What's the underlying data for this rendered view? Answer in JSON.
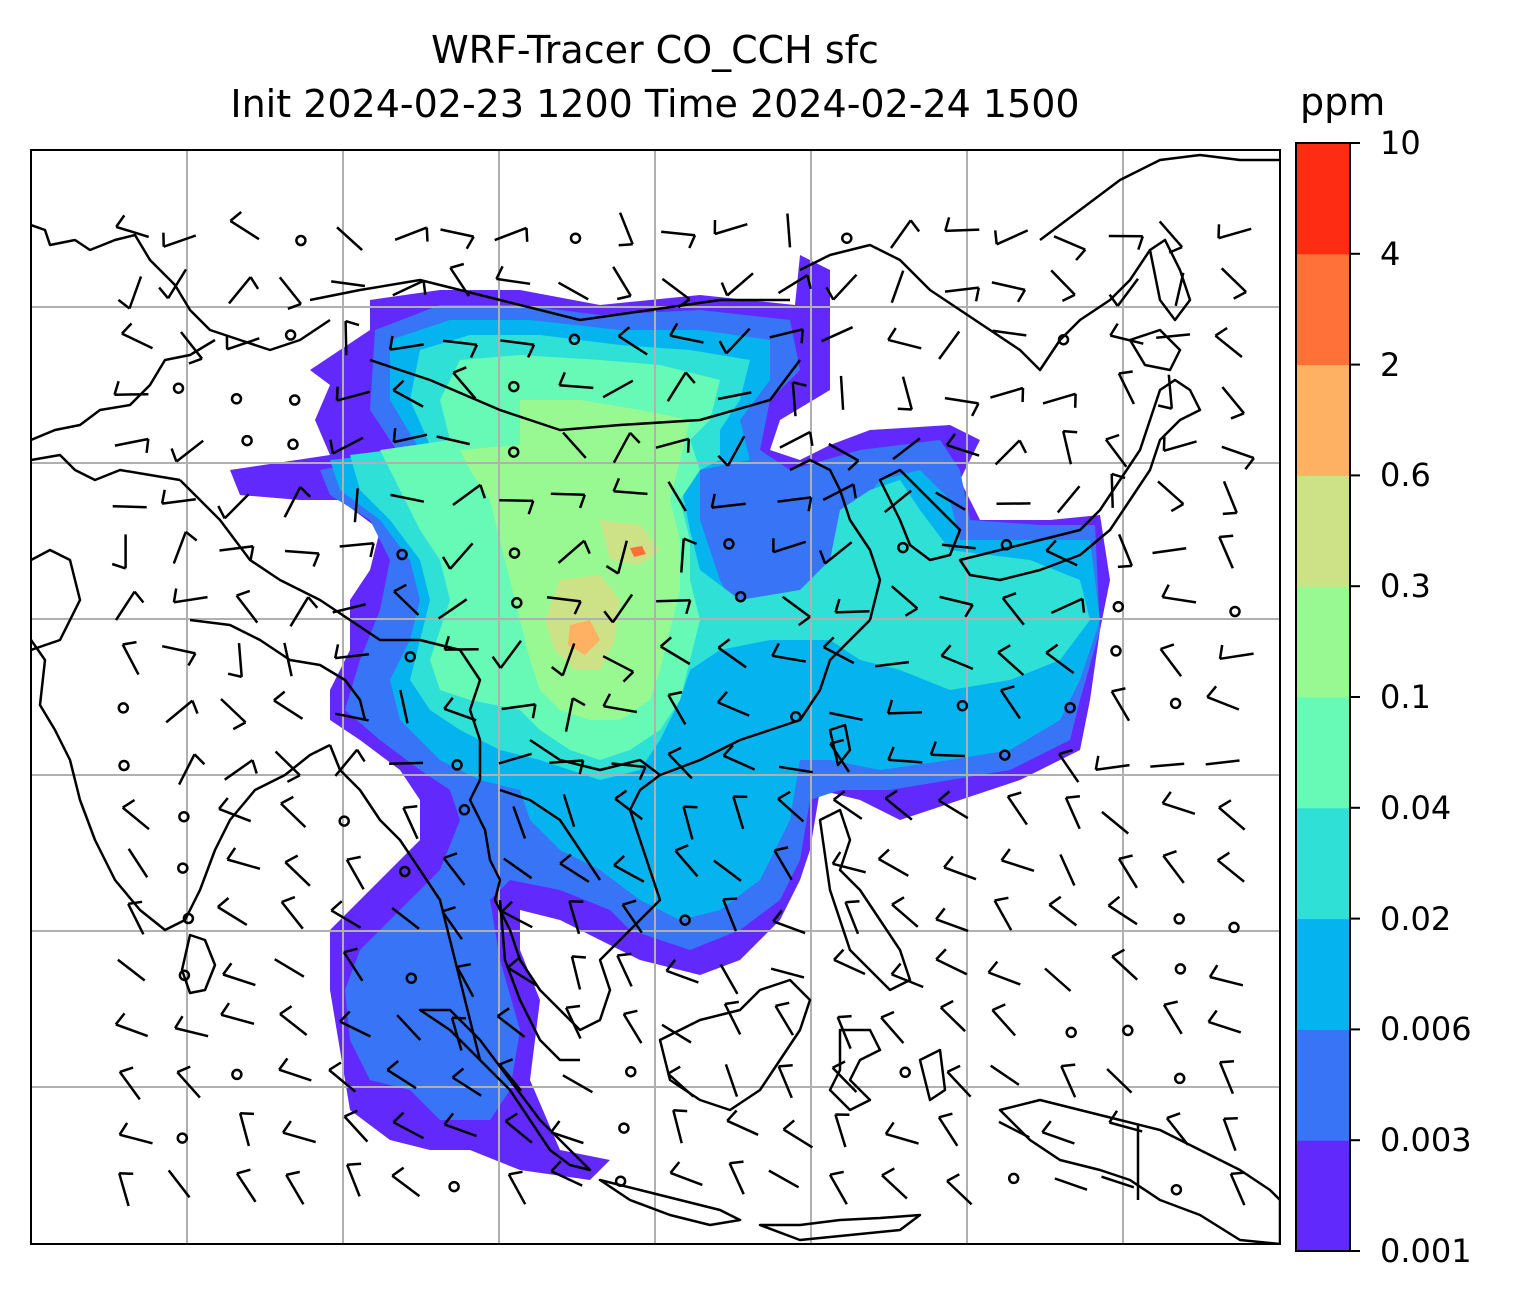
{
  "title": {
    "line1": "WRF-Tracer CO_CCH sfc",
    "line2": "Init 2024-02-23 1200 Time 2024-02-24 1500"
  },
  "colorbar": {
    "units": "ppm",
    "levels": [
      "0.001",
      "0.003",
      "0.006",
      "0.02",
      "0.04",
      "0.1",
      "0.3",
      "0.6",
      "2",
      "4",
      "10"
    ],
    "colors": [
      "#6229fd",
      "#3875f6",
      "#05b4ee",
      "#2ee0d6",
      "#66fab6",
      "#98f993",
      "#cde186",
      "#feb162",
      "#ff7138",
      "#ff2c14"
    ]
  },
  "map": {
    "gridlines": true,
    "gridline_color": "#b0b0b0",
    "coastline_color": "#000000"
  }
}
